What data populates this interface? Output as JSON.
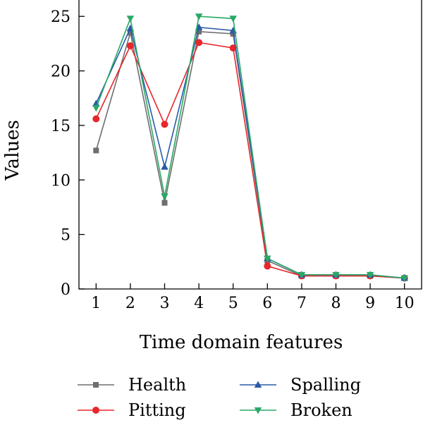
{
  "chart_data": {
    "type": "line",
    "xlabel": "Time domain features",
    "ylabel": "Values",
    "x": [
      1,
      2,
      3,
      4,
      5,
      6,
      7,
      8,
      9,
      10
    ],
    "xlim": [
      0.5,
      10.5
    ],
    "ylim": [
      0,
      26.5
    ],
    "yticks": [
      0,
      5,
      10,
      15,
      20,
      25
    ],
    "grid": false,
    "legend_position": "bottom",
    "series": [
      {
        "name": "Health",
        "color": "#6e6e6e",
        "marker": "square",
        "values": [
          12.7,
          23.5,
          7.9,
          23.6,
          23.4,
          2.6,
          1.2,
          1.2,
          1.2,
          1.0
        ]
      },
      {
        "name": "Pitting",
        "color": "#e8262b",
        "marker": "circle",
        "values": [
          15.6,
          22.3,
          15.1,
          22.6,
          22.1,
          2.1,
          1.2,
          1.2,
          1.2,
          1.0
        ]
      },
      {
        "name": "Spalling",
        "color": "#2a5aa8",
        "marker": "triangle-up",
        "values": [
          17.0,
          23.9,
          11.2,
          24.0,
          23.7,
          2.8,
          1.3,
          1.3,
          1.3,
          1.0
        ]
      },
      {
        "name": "Broken",
        "color": "#2aa866",
        "marker": "triangle-down",
        "values": [
          16.6,
          24.8,
          8.5,
          25.0,
          24.8,
          2.8,
          1.3,
          1.3,
          1.3,
          1.0
        ]
      }
    ]
  }
}
